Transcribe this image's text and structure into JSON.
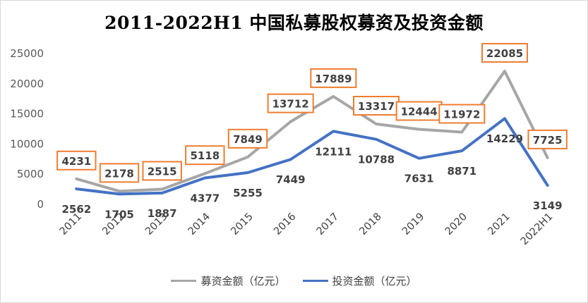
{
  "chart_data": {
    "type": "line",
    "title": "2011-2022H1 中国私募股权募资及投资金额",
    "categories": [
      "2011",
      "2012",
      "2013",
      "2014",
      "2015",
      "2016",
      "2017",
      "2018",
      "2019",
      "2020",
      "2021",
      "2022H1"
    ],
    "series": [
      {
        "name": "募资金额（亿元）",
        "color": "#a6a6a6",
        "values": [
          4231,
          2178,
          2515,
          5118,
          7849,
          13712,
          17889,
          13317,
          12444,
          11972,
          22085,
          7725
        ],
        "labels": [
          "4231",
          "2178",
          "2515",
          "5118",
          "7849",
          "13712",
          "17889",
          "13317",
          "12444",
          "11972",
          "22085",
          "7725"
        ]
      },
      {
        "name": "投资金额（亿元）",
        "color": "#4472c4",
        "values": [
          2562,
          1705,
          1887,
          4377,
          5255,
          7449,
          12111,
          10788,
          7631,
          8871,
          14229,
          3149
        ],
        "labels": [
          "2562",
          "1705",
          "1887",
          "4377",
          "5255",
          "7449",
          "12111",
          "10788",
          "7631",
          "8871",
          "14229",
          "3149"
        ]
      }
    ],
    "yticks": [
      "0",
      "5000",
      "10000",
      "15000",
      "20000",
      "25000"
    ],
    "ylim": [
      0,
      25000
    ],
    "grid": false,
    "legend": "bottom",
    "label_box_color": "#ed7d31"
  }
}
